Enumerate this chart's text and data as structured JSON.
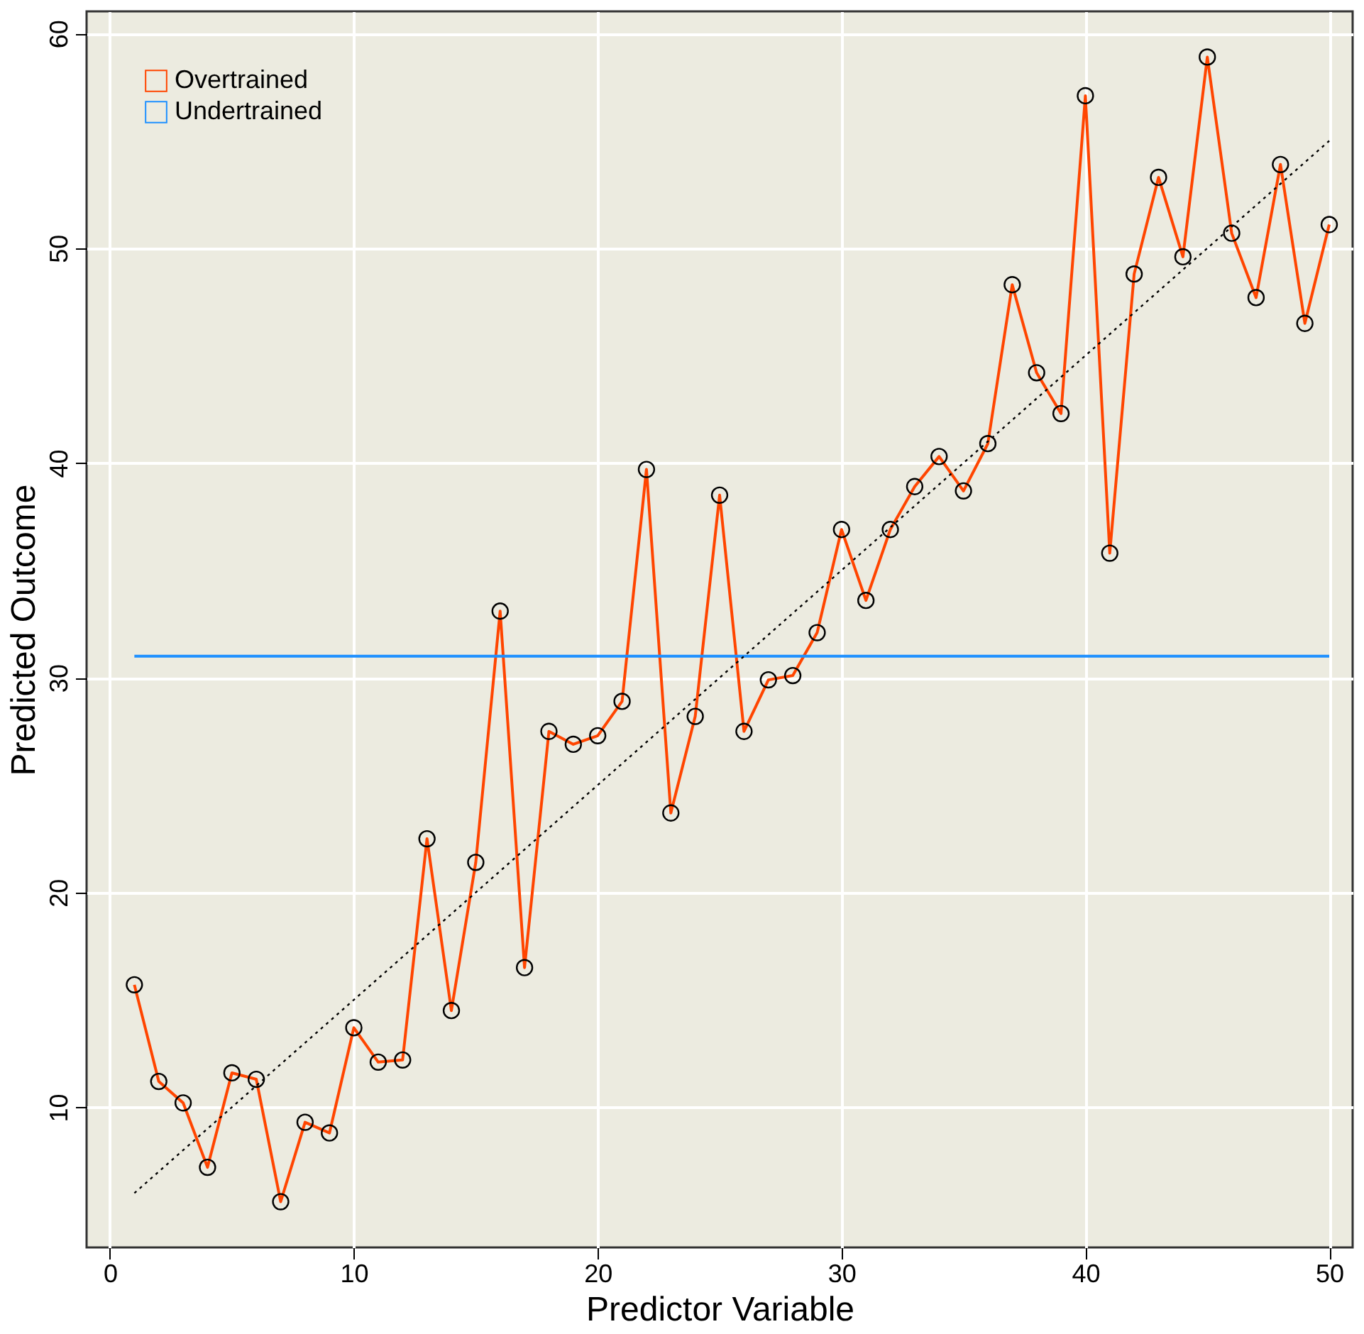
{
  "chart_data": {
    "type": "line",
    "xlabel": "Predictor Variable",
    "ylabel": "Predicted Outcome",
    "xlim": [
      -0.96,
      50.96
    ],
    "ylim": [
      3.47,
      61.03
    ],
    "xticks": [
      0,
      10,
      20,
      30,
      40,
      50
    ],
    "yticks": [
      10,
      20,
      30,
      40,
      50,
      60
    ],
    "grid": true,
    "legend": "top left",
    "series": [
      {
        "name": "Overtrained",
        "color": "#ff4500",
        "marker": "circle",
        "line_style": "solid",
        "x": [
          1,
          2,
          3,
          4,
          5,
          6,
          7,
          8,
          9,
          10,
          11,
          12,
          13,
          14,
          15,
          16,
          17,
          18,
          19,
          20,
          21,
          22,
          23,
          24,
          25,
          26,
          27,
          28,
          29,
          30,
          31,
          32,
          33,
          34,
          35,
          36,
          37,
          38,
          39,
          40,
          41,
          42,
          43,
          44,
          45,
          46,
          47,
          48,
          49,
          50
        ],
        "values": [
          15.7,
          11.2,
          10.2,
          7.2,
          11.6,
          11.3,
          5.6,
          9.3,
          8.8,
          13.7,
          12.1,
          12.2,
          22.5,
          14.5,
          21.4,
          33.1,
          16.5,
          27.5,
          26.9,
          27.3,
          28.9,
          39.7,
          23.7,
          28.2,
          38.5,
          27.5,
          29.9,
          30.1,
          32.1,
          36.9,
          33.6,
          36.9,
          38.9,
          40.3,
          38.7,
          40.9,
          48.3,
          44.2,
          42.3,
          57.1,
          35.8,
          48.8,
          53.3,
          49.6,
          58.9,
          50.7,
          47.7,
          53.9,
          46.5,
          51.1
        ]
      },
      {
        "name": "Undertrained",
        "color": "#1e90ff",
        "marker": "none",
        "line_style": "solid",
        "x": [
          1,
          50
        ],
        "values": [
          31,
          31
        ]
      },
      {
        "color": "#000000",
        "marker": "none",
        "line_style": "dotted",
        "x": [
          1,
          50
        ],
        "values": [
          6,
          55
        ]
      }
    ]
  }
}
